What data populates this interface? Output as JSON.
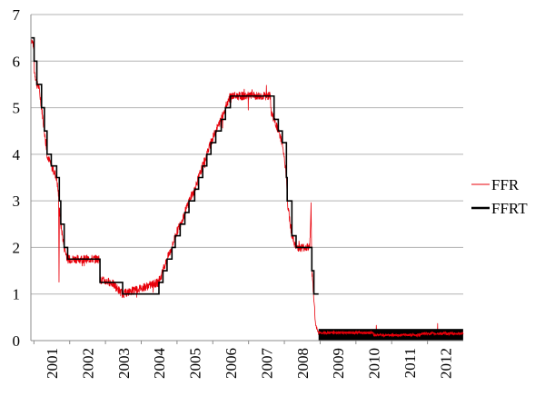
{
  "chart_data": {
    "type": "line",
    "title": "",
    "xlabel": "",
    "ylabel": "",
    "x_range": [
      "2000-12-01",
      "2013-01-01"
    ],
    "ylim": [
      0,
      7
    ],
    "y_ticks": [
      0,
      1,
      2,
      3,
      4,
      5,
      6,
      7
    ],
    "x_ticks": [
      "2001",
      "2002",
      "2003",
      "2004",
      "2005",
      "2006",
      "2007",
      "2008",
      "2009",
      "2010",
      "2011",
      "2012"
    ],
    "grid": "horizontal",
    "legend_position": "right",
    "series": [
      {
        "name": "FFR",
        "color": "#e8000a",
        "style": "thin noisy line",
        "points": [
          [
            "2000-12-01",
            6.5
          ],
          [
            "2001-01-03",
            6.3
          ],
          [
            "2001-01-05",
            5.8
          ],
          [
            "2001-01-31",
            5.5
          ],
          [
            "2001-02-20",
            5.45
          ],
          [
            "2001-03-20",
            5.0
          ],
          [
            "2001-04-18",
            4.5
          ],
          [
            "2001-05-15",
            4.0
          ],
          [
            "2001-06-27",
            3.75
          ],
          [
            "2001-08-21",
            3.5
          ],
          [
            "2001-09-10",
            3.1
          ],
          [
            "2001-09-14",
            1.2
          ],
          [
            "2001-09-18",
            2.9
          ],
          [
            "2001-10-02",
            2.5
          ],
          [
            "2001-11-06",
            2.0
          ],
          [
            "2001-12-11",
            1.75
          ],
          [
            "2002-06-01",
            1.75
          ],
          [
            "2002-11-06",
            1.75
          ],
          [
            "2002-11-07",
            1.3
          ],
          [
            "2003-03-01",
            1.25
          ],
          [
            "2003-06-25",
            1.0
          ],
          [
            "2004-06-30",
            1.25
          ],
          [
            "2004-08-10",
            1.5
          ],
          [
            "2004-09-21",
            1.75
          ],
          [
            "2004-11-10",
            2.0
          ],
          [
            "2004-12-14",
            2.25
          ],
          [
            "2005-02-02",
            2.5
          ],
          [
            "2005-03-22",
            2.75
          ],
          [
            "2005-05-03",
            3.0
          ],
          [
            "2005-06-30",
            3.25
          ],
          [
            "2005-08-09",
            3.5
          ],
          [
            "2005-09-20",
            3.75
          ],
          [
            "2005-11-01",
            4.0
          ],
          [
            "2005-12-13",
            4.25
          ],
          [
            "2006-01-31",
            4.5
          ],
          [
            "2006-03-28",
            4.75
          ],
          [
            "2006-05-10",
            5.0
          ],
          [
            "2006-06-29",
            5.25
          ],
          [
            "2007-08-10",
            5.25
          ],
          [
            "2007-08-20",
            4.9
          ],
          [
            "2007-09-18",
            4.75
          ],
          [
            "2007-10-31",
            4.5
          ],
          [
            "2007-12-11",
            4.25
          ],
          [
            "2008-01-22",
            3.5
          ],
          [
            "2008-01-30",
            3.0
          ],
          [
            "2008-03-18",
            2.25
          ],
          [
            "2008-04-30",
            2.0
          ],
          [
            "2008-09-16",
            2.0
          ],
          [
            "2008-09-30",
            2.9
          ],
          [
            "2008-10-08",
            1.5
          ],
          [
            "2008-10-29",
            0.9
          ],
          [
            "2008-11-15",
            0.35
          ],
          [
            "2008-12-16",
            0.15
          ],
          [
            "2009-06-01",
            0.2
          ],
          [
            "2010-06-01",
            0.18
          ],
          [
            "2011-06-01",
            0.1
          ],
          [
            "2012-06-01",
            0.16
          ],
          [
            "2012-12-31",
            0.16
          ]
        ]
      },
      {
        "name": "FFRT",
        "color": "#000000",
        "style": "step",
        "steps": [
          [
            "2000-12-01",
            6.5
          ],
          [
            "2001-01-03",
            6.0
          ],
          [
            "2001-01-31",
            5.5
          ],
          [
            "2001-03-20",
            5.0
          ],
          [
            "2001-04-18",
            4.5
          ],
          [
            "2001-05-15",
            4.0
          ],
          [
            "2001-06-27",
            3.75
          ],
          [
            "2001-08-21",
            3.5
          ],
          [
            "2001-09-17",
            3.0
          ],
          [
            "2001-10-02",
            2.5
          ],
          [
            "2001-11-06",
            2.0
          ],
          [
            "2001-12-11",
            1.75
          ],
          [
            "2002-11-06",
            1.25
          ],
          [
            "2003-06-25",
            1.0
          ],
          [
            "2004-06-30",
            1.25
          ],
          [
            "2004-08-10",
            1.5
          ],
          [
            "2004-09-21",
            1.75
          ],
          [
            "2004-11-10",
            2.0
          ],
          [
            "2004-12-14",
            2.25
          ],
          [
            "2005-02-02",
            2.5
          ],
          [
            "2005-03-22",
            2.75
          ],
          [
            "2005-05-03",
            3.0
          ],
          [
            "2005-06-30",
            3.25
          ],
          [
            "2005-08-09",
            3.5
          ],
          [
            "2005-09-20",
            3.75
          ],
          [
            "2005-11-01",
            4.0
          ],
          [
            "2005-12-13",
            4.25
          ],
          [
            "2006-01-31",
            4.5
          ],
          [
            "2006-03-28",
            4.75
          ],
          [
            "2006-05-10",
            5.0
          ],
          [
            "2006-06-29",
            5.25
          ],
          [
            "2007-09-18",
            4.75
          ],
          [
            "2007-10-31",
            4.5
          ],
          [
            "2007-12-11",
            4.25
          ],
          [
            "2008-01-22",
            3.5
          ],
          [
            "2008-01-30",
            3.0
          ],
          [
            "2008-03-18",
            2.25
          ],
          [
            "2008-04-30",
            2.0
          ],
          [
            "2008-10-08",
            1.5
          ],
          [
            "2008-10-29",
            1.0
          ]
        ],
        "band": {
          "from": "2008-12-16",
          "to": "2012-12-31",
          "low": 0.0,
          "high": 0.25
        }
      }
    ]
  }
}
